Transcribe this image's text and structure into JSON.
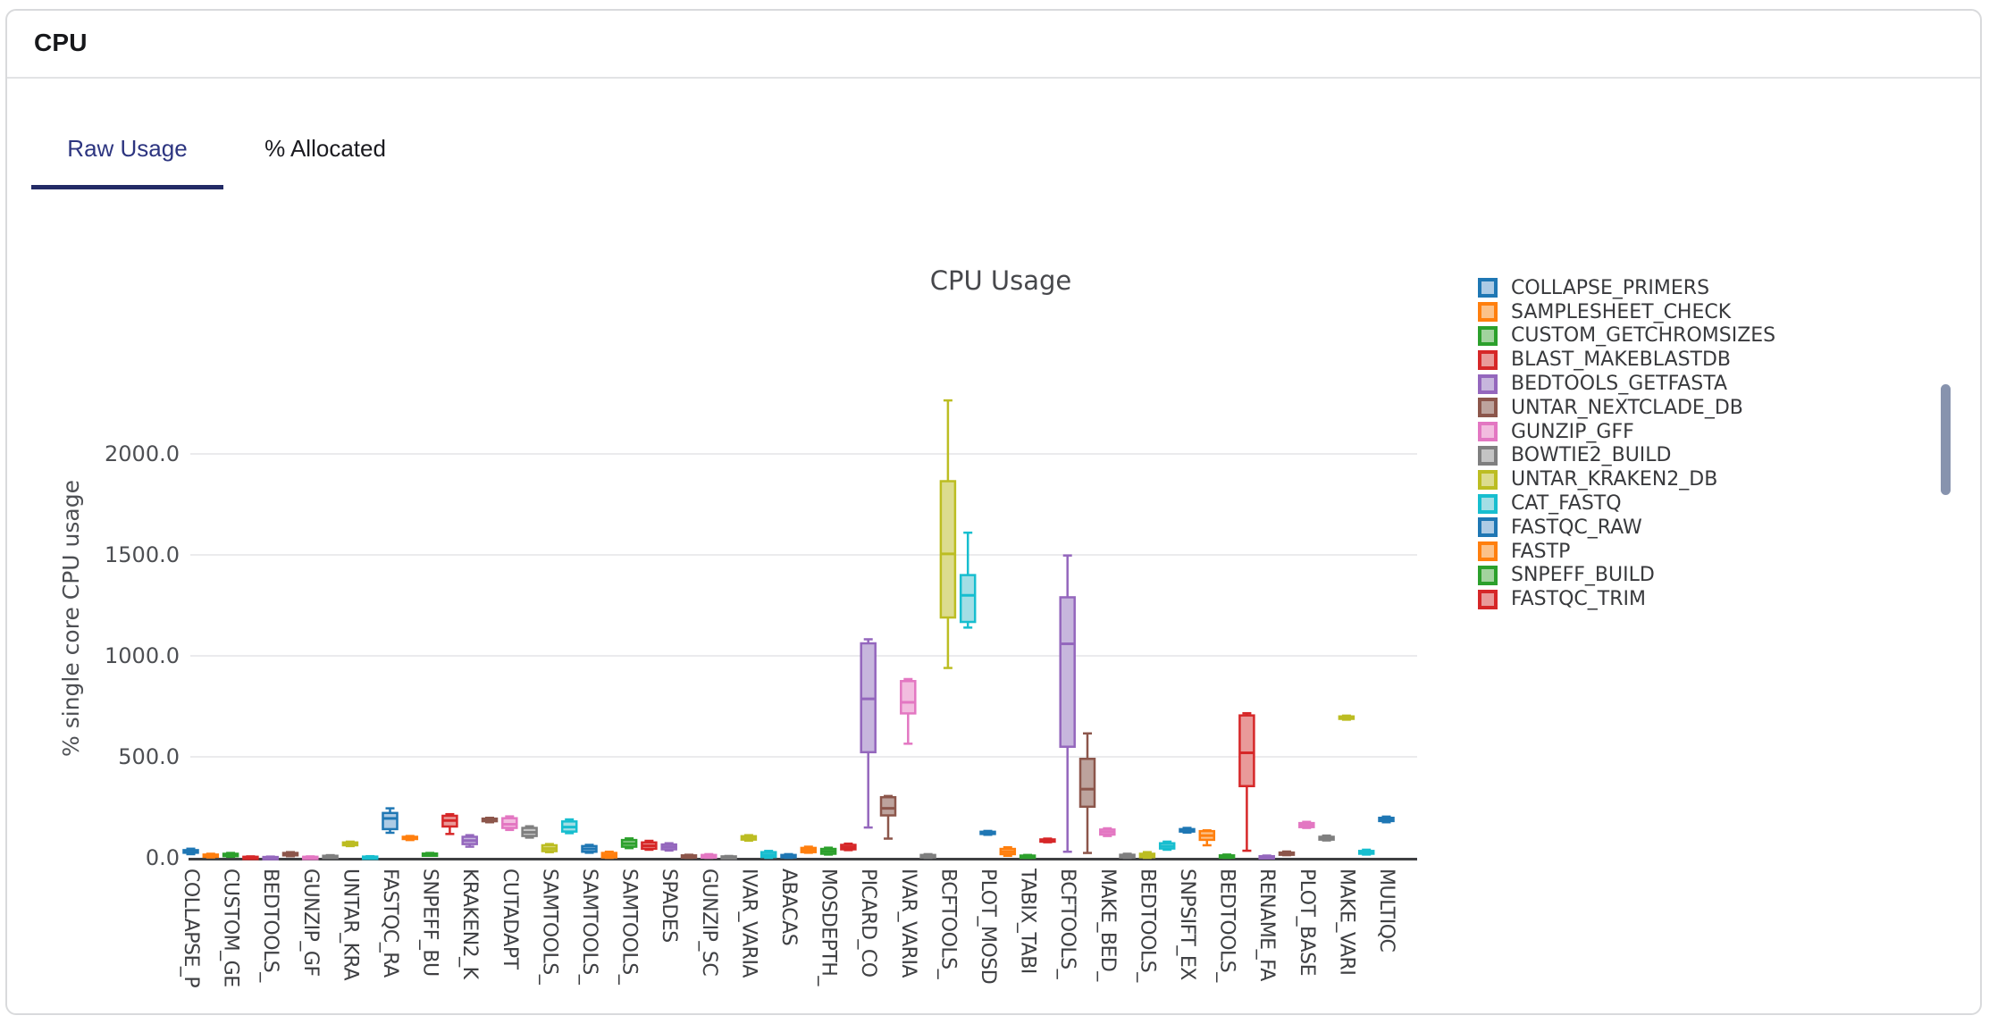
{
  "card": {
    "title": "CPU"
  },
  "tabs": {
    "items": [
      {
        "label": "Raw Usage",
        "active": true
      },
      {
        "label": "% Allocated",
        "active": false
      }
    ]
  },
  "colors": {
    "tab_active_text": "#2d3580",
    "tab_underline": "#232b66",
    "card_border": "#d9dadc",
    "grid": "#ebebed",
    "axis": "#3f4043",
    "scrollbar_thumb": "#8793ae"
  },
  "chart_data": {
    "type": "boxplot",
    "title": "CPU Usage",
    "xlabel": "",
    "ylabel": "% single core CPU usage",
    "ylim": [
      0,
      2300
    ],
    "grid": true,
    "legend_position": "right",
    "x_tick_rotation": 90,
    "yticks": [
      {
        "label": "2000.0",
        "value": 2000
      },
      {
        "label": "1500.0",
        "value": 1500
      },
      {
        "label": "1000.0",
        "value": 1000
      },
      {
        "label": "500.0",
        "value": 500
      },
      {
        "label": "0.0",
        "value": 0
      }
    ],
    "palette": [
      {
        "name": "blue",
        "stroke": "#1f77b4",
        "fill": "#adcbe5"
      },
      {
        "name": "orange",
        "stroke": "#ff7f0e",
        "fill": "#fbc28a"
      },
      {
        "name": "green",
        "stroke": "#2ca02c",
        "fill": "#a2d39e"
      },
      {
        "name": "red",
        "stroke": "#d62728",
        "fill": "#e99a99"
      },
      {
        "name": "purple",
        "stroke": "#9467bd",
        "fill": "#c7b6dd"
      },
      {
        "name": "brown",
        "stroke": "#8c564b",
        "fill": "#bda39d"
      },
      {
        "name": "pink",
        "stroke": "#e377c2",
        "fill": "#f2bcdf"
      },
      {
        "name": "gray",
        "stroke": "#7f7f7f",
        "fill": "#c4c4c4"
      },
      {
        "name": "olive",
        "stroke": "#bcbd22",
        "fill": "#dcdc8e"
      },
      {
        "name": "cyan",
        "stroke": "#17becf",
        "fill": "#a3dee5"
      }
    ],
    "boxes": [
      {
        "tick": "COLLAPSE_P",
        "color": 0,
        "values": [
          18,
          25,
          30,
          38,
          45
        ]
      },
      {
        "tick": "",
        "color": 1,
        "values": [
          2,
          5,
          10,
          16,
          20
        ]
      },
      {
        "tick": "CUSTOM_GE",
        "color": 2,
        "values": [
          5,
          8,
          14,
          20,
          24
        ]
      },
      {
        "tick": "",
        "color": 3,
        "values": [
          0,
          1,
          3,
          5,
          7
        ]
      },
      {
        "tick": "BEDTOOLS_",
        "color": 4,
        "values": [
          0,
          1,
          2,
          4,
          6
        ]
      },
      {
        "tick": "",
        "color": 5,
        "values": [
          8,
          12,
          17,
          24,
          28
        ]
      },
      {
        "tick": "GUNZIP_GF",
        "color": 6,
        "values": [
          0,
          1,
          3,
          5,
          7
        ]
      },
      {
        "tick": "",
        "color": 7,
        "values": [
          0,
          2,
          6,
          10,
          13
        ]
      },
      {
        "tick": "UNTAR_KRA",
        "color": 8,
        "values": [
          58,
          62,
          69,
          76,
          80
        ]
      },
      {
        "tick": "",
        "color": 9,
        "values": [
          0,
          1,
          4,
          6,
          8
        ]
      },
      {
        "tick": "FASTQC_RA",
        "color": 0,
        "values": [
          124,
          142,
          195,
          222,
          245
        ]
      },
      {
        "tick": "",
        "color": 1,
        "values": [
          88,
          93,
          98,
          104,
          108
        ]
      },
      {
        "tick": "SNPEFF_BU",
        "color": 2,
        "values": [
          12,
          14,
          18,
          21,
          24
        ]
      },
      {
        "tick": "",
        "color": 3,
        "values": [
          118,
          155,
          185,
          208,
          216
        ]
      },
      {
        "tick": "KRAKEN2_K",
        "color": 4,
        "values": [
          55,
          68,
          85,
          104,
          112
        ]
      },
      {
        "tick": "",
        "color": 5,
        "values": [
          176,
          181,
          188,
          194,
          198
        ]
      },
      {
        "tick": "CUTADAPT",
        "color": 6,
        "values": [
          138,
          148,
          166,
          196,
          205
        ]
      },
      {
        "tick": "",
        "color": 7,
        "values": [
          100,
          108,
          126,
          148,
          156
        ]
      },
      {
        "tick": "SAMTOOLS_",
        "color": 8,
        "values": [
          28,
          33,
          46,
          62,
          68
        ]
      },
      {
        "tick": "",
        "color": 9,
        "values": [
          122,
          130,
          152,
          180,
          190
        ]
      },
      {
        "tick": "SAMTOOLS_",
        "color": 0,
        "values": [
          25,
          30,
          44,
          58,
          64
        ]
      },
      {
        "tick": "",
        "color": 1,
        "values": [
          0,
          2,
          12,
          24,
          30
        ]
      },
      {
        "tick": "SAMTOOLS_",
        "color": 2,
        "values": [
          48,
          55,
          70,
          88,
          96
        ]
      },
      {
        "tick": "",
        "color": 3,
        "values": [
          40,
          45,
          60,
          76,
          84
        ]
      },
      {
        "tick": "SPADES",
        "color": 4,
        "values": [
          36,
          42,
          54,
          66,
          72
        ]
      },
      {
        "tick": "",
        "color": 5,
        "values": [
          0,
          1,
          6,
          12,
          15
        ]
      },
      {
        "tick": "GUNZIP_SC",
        "color": 6,
        "values": [
          0,
          1,
          8,
          14,
          18
        ]
      },
      {
        "tick": "",
        "color": 7,
        "values": [
          0,
          1,
          4,
          7,
          9
        ]
      },
      {
        "tick": "IVAR_VARIA",
        "color": 8,
        "values": [
          85,
          90,
          98,
          107,
          112
        ]
      },
      {
        "tick": "",
        "color": 9,
        "values": [
          0,
          4,
          15,
          28,
          34
        ]
      },
      {
        "tick": "ABACAS",
        "color": 0,
        "values": [
          0,
          2,
          8,
          14,
          18
        ]
      },
      {
        "tick": "",
        "color": 1,
        "values": [
          25,
          28,
          38,
          49,
          55
        ]
      },
      {
        "tick": "MOSDEPTH_",
        "color": 2,
        "values": [
          16,
          20,
          32,
          44,
          50
        ]
      },
      {
        "tick": "",
        "color": 3,
        "values": [
          38,
          42,
          52,
          64,
          70
        ]
      },
      {
        "tick": "PICARD_CO",
        "color": 4,
        "values": [
          150,
          523,
          787,
          1062,
          1082
        ]
      },
      {
        "tick": "",
        "color": 5,
        "values": [
          95,
          210,
          245,
          300,
          306
        ]
      },
      {
        "tick": "IVAR_VARIA",
        "color": 6,
        "values": [
          565,
          715,
          770,
          875,
          885
        ]
      },
      {
        "tick": "",
        "color": 7,
        "values": [
          0,
          2,
          8,
          14,
          18
        ]
      },
      {
        "tick": "BCFTOOLS_",
        "color": 8,
        "values": [
          940,
          1190,
          1505,
          1865,
          2265
        ]
      },
      {
        "tick": "",
        "color": 9,
        "values": [
          1140,
          1168,
          1300,
          1400,
          1610
        ]
      },
      {
        "tick": "PLOT_MOSD",
        "color": 0,
        "values": [
          114,
          119,
          124,
          129,
          133
        ]
      },
      {
        "tick": "",
        "color": 1,
        "values": [
          10,
          18,
          30,
          44,
          52
        ]
      },
      {
        "tick": "TABIX_TABI",
        "color": 2,
        "values": [
          0,
          2,
          6,
          11,
          14
        ]
      },
      {
        "tick": "",
        "color": 3,
        "values": [
          77,
          81,
          86,
          91,
          95
        ]
      },
      {
        "tick": "BCFTOOLS_",
        "color": 4,
        "values": [
          30,
          550,
          1060,
          1290,
          1497
        ]
      },
      {
        "tick": "",
        "color": 5,
        "values": [
          24,
          253,
          340,
          490,
          616
        ]
      },
      {
        "tick": "MAKE_BED_",
        "color": 6,
        "values": [
          108,
          115,
          128,
          140,
          146
        ]
      },
      {
        "tick": "",
        "color": 7,
        "values": [
          0,
          2,
          8,
          15,
          20
        ]
      },
      {
        "tick": "BEDTOOLS_",
        "color": 8,
        "values": [
          0,
          3,
          10,
          20,
          28
        ]
      },
      {
        "tick": "",
        "color": 9,
        "values": [
          40,
          46,
          58,
          72,
          80
        ]
      },
      {
        "tick": "SNPSIFT_EX",
        "color": 0,
        "values": [
          125,
          130,
          136,
          142,
          148
        ]
      },
      {
        "tick": "",
        "color": 1,
        "values": [
          62,
          89,
          110,
          132,
          136
        ]
      },
      {
        "tick": "BEDTOOLS_",
        "color": 2,
        "values": [
          0,
          2,
          6,
          12,
          16
        ]
      },
      {
        "tick": "",
        "color": 3,
        "values": [
          35,
          355,
          520,
          705,
          716
        ]
      },
      {
        "tick": "RENAME_FA",
        "color": 4,
        "values": [
          0,
          1,
          4,
          8,
          11
        ]
      },
      {
        "tick": "",
        "color": 5,
        "values": [
          13,
          16,
          20,
          26,
          31
        ]
      },
      {
        "tick": "PLOT_BASE",
        "color": 6,
        "values": [
          148,
          152,
          162,
          172,
          178
        ]
      },
      {
        "tick": "",
        "color": 7,
        "values": [
          86,
          90,
          97,
          104,
          110
        ]
      },
      {
        "tick": "MAKE_VARI",
        "color": 8,
        "values": [
          684,
          688,
          694,
          700,
          704
        ]
      },
      {
        "tick": "",
        "color": 9,
        "values": [
          16,
          20,
          26,
          34,
          40
        ]
      },
      {
        "tick": "MULTIQC",
        "color": 0,
        "values": [
          176,
          182,
          190,
          198,
          204
        ]
      }
    ]
  },
  "legend": {
    "items": [
      {
        "label": "COLLAPSE_PRIMERS",
        "color": 0
      },
      {
        "label": "SAMPLESHEET_CHECK",
        "color": 1
      },
      {
        "label": "CUSTOM_GETCHROMSIZES",
        "color": 2
      },
      {
        "label": "BLAST_MAKEBLASTDB",
        "color": 3
      },
      {
        "label": "BEDTOOLS_GETFASTA",
        "color": 4
      },
      {
        "label": "UNTAR_NEXTCLADE_DB",
        "color": 5
      },
      {
        "label": "GUNZIP_GFF",
        "color": 6
      },
      {
        "label": "BOWTIE2_BUILD",
        "color": 7
      },
      {
        "label": "UNTAR_KRAKEN2_DB",
        "color": 8
      },
      {
        "label": "CAT_FASTQ",
        "color": 9
      },
      {
        "label": "FASTQC_RAW",
        "color": 0
      },
      {
        "label": "FASTP",
        "color": 1
      },
      {
        "label": "SNPEFF_BUILD",
        "color": 2
      },
      {
        "label": "FASTQC_TRIM",
        "color": 3
      }
    ]
  }
}
